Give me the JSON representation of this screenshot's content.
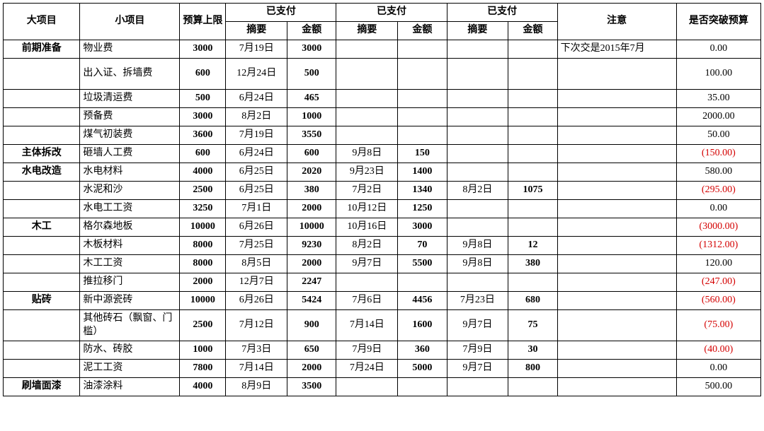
{
  "columns": {
    "major": "大项目",
    "minor": "小项目",
    "budget": "预算上限",
    "paid": "已支付",
    "summary": "摘要",
    "amount": "金额",
    "note": "注意",
    "over": "是否突破预算"
  },
  "rows": [
    {
      "major": "前期准备",
      "minor": "物业费",
      "budget": "3000",
      "s1": "7月19日",
      "a1": "3000",
      "s2": "",
      "a2": "",
      "s3": "",
      "a3": "",
      "note": "下次交是2015年7月",
      "over": "0.00",
      "neg": false,
      "tall": false
    },
    {
      "major": "",
      "minor": "出入证、拆墙费",
      "budget": "600",
      "s1": "12月24日",
      "a1": "500",
      "s2": "",
      "a2": "",
      "s3": "",
      "a3": "",
      "note": "",
      "over": "100.00",
      "neg": false,
      "tall": true
    },
    {
      "major": "",
      "minor": "垃圾清运费",
      "budget": "500",
      "s1": "6月24日",
      "a1": "465",
      "s2": "",
      "a2": "",
      "s3": "",
      "a3": "",
      "note": "",
      "over": "35.00",
      "neg": false,
      "tall": false
    },
    {
      "major": "",
      "minor": "预备费",
      "budget": "3000",
      "s1": "8月2日",
      "a1": "1000",
      "s2": "",
      "a2": "",
      "s3": "",
      "a3": "",
      "note": "",
      "over": "2000.00",
      "neg": false,
      "tall": false
    },
    {
      "major": "",
      "minor": "煤气初装费",
      "budget": "3600",
      "s1": "7月19日",
      "a1": "3550",
      "s2": "",
      "a2": "",
      "s3": "",
      "a3": "",
      "note": "",
      "over": "50.00",
      "neg": false,
      "tall": false
    },
    {
      "major": "主体拆改",
      "minor": "砸墙人工费",
      "budget": "600",
      "s1": "6月24日",
      "a1": "600",
      "s2": "9月8日",
      "a2": "150",
      "s3": "",
      "a3": "",
      "note": "",
      "over": "(150.00)",
      "neg": true,
      "tall": false
    },
    {
      "major": "水电改造",
      "minor": "水电材料",
      "budget": "4000",
      "s1": "6月25日",
      "a1": "2020",
      "s2": "9月23日",
      "a2": "1400",
      "s3": "",
      "a3": "",
      "note": "",
      "over": "580.00",
      "neg": false,
      "tall": false
    },
    {
      "major": "",
      "minor": "水泥和沙",
      "budget": "2500",
      "s1": "6月25日",
      "a1": "380",
      "s2": "7月2日",
      "a2": "1340",
      "s3": "8月2日",
      "a3": "1075",
      "note": "",
      "over": "(295.00)",
      "neg": true,
      "tall": false
    },
    {
      "major": "",
      "minor": "水电工工资",
      "budget": "3250",
      "s1": "7月1日",
      "a1": "2000",
      "s2": "10月12日",
      "a2": "1250",
      "s3": "",
      "a3": "",
      "note": "",
      "over": "0.00",
      "neg": false,
      "tall": false
    },
    {
      "major": "木工",
      "minor": "格尔森地板",
      "budget": "10000",
      "s1": "6月26日",
      "a1": "10000",
      "s2": "10月16日",
      "a2": "3000",
      "s3": "",
      "a3": "",
      "note": "",
      "over": "(3000.00)",
      "neg": true,
      "tall": false
    },
    {
      "major": "",
      "minor": "木板材料",
      "budget": "8000",
      "s1": "7月25日",
      "a1": "9230",
      "s2": "8月2日",
      "a2": "70",
      "s3": "9月8日",
      "a3": "12",
      "note": "",
      "over": "(1312.00)",
      "neg": true,
      "tall": false
    },
    {
      "major": "",
      "minor": "木工工资",
      "budget": "8000",
      "s1": "8月5日",
      "a1": "2000",
      "s2": "9月7日",
      "a2": "5500",
      "s3": "9月8日",
      "a3": "380",
      "note": "",
      "over": "120.00",
      "neg": false,
      "tall": false
    },
    {
      "major": "",
      "minor": "推拉移门",
      "budget": "2000",
      "s1": "12月7日",
      "a1": "2247",
      "s2": "",
      "a2": "",
      "s3": "",
      "a3": "",
      "note": "",
      "over": "(247.00)",
      "neg": true,
      "tall": false
    },
    {
      "major": "贴砖",
      "minor": "新中源瓷砖",
      "budget": "10000",
      "s1": "6月26日",
      "a1": "5424",
      "s2": "7月6日",
      "a2": "4456",
      "s3": "7月23日",
      "a3": "680",
      "note": "",
      "over": "(560.00)",
      "neg": true,
      "tall": false
    },
    {
      "major": "",
      "minor": "其他砖石（飘窗、门槛）",
      "budget": "2500",
      "s1": "7月12日",
      "a1": "900",
      "s2": "7月14日",
      "a2": "1600",
      "s3": "9月7日",
      "a3": "75",
      "note": "",
      "over": "(75.00)",
      "neg": true,
      "tall": true
    },
    {
      "major": "",
      "minor": "防水、砖胶",
      "budget": "1000",
      "s1": "7月3日",
      "a1": "650",
      "s2": "7月9日",
      "a2": "360",
      "s3": "7月9日",
      "a3": "30",
      "note": "",
      "over": "(40.00)",
      "neg": true,
      "tall": false
    },
    {
      "major": "",
      "minor": "泥工工资",
      "budget": "7800",
      "s1": "7月14日",
      "a1": "2000",
      "s2": "7月24日",
      "a2": "5000",
      "s3": "9月7日",
      "a3": "800",
      "note": "",
      "over": "0.00",
      "neg": false,
      "tall": false
    },
    {
      "major": "刷墙面漆",
      "minor": "油漆涂料",
      "budget": "4000",
      "s1": "8月9日",
      "a1": "3500",
      "s2": "",
      "a2": "",
      "s3": "",
      "a3": "",
      "note": "",
      "over": "500.00",
      "neg": false,
      "tall": false
    }
  ]
}
